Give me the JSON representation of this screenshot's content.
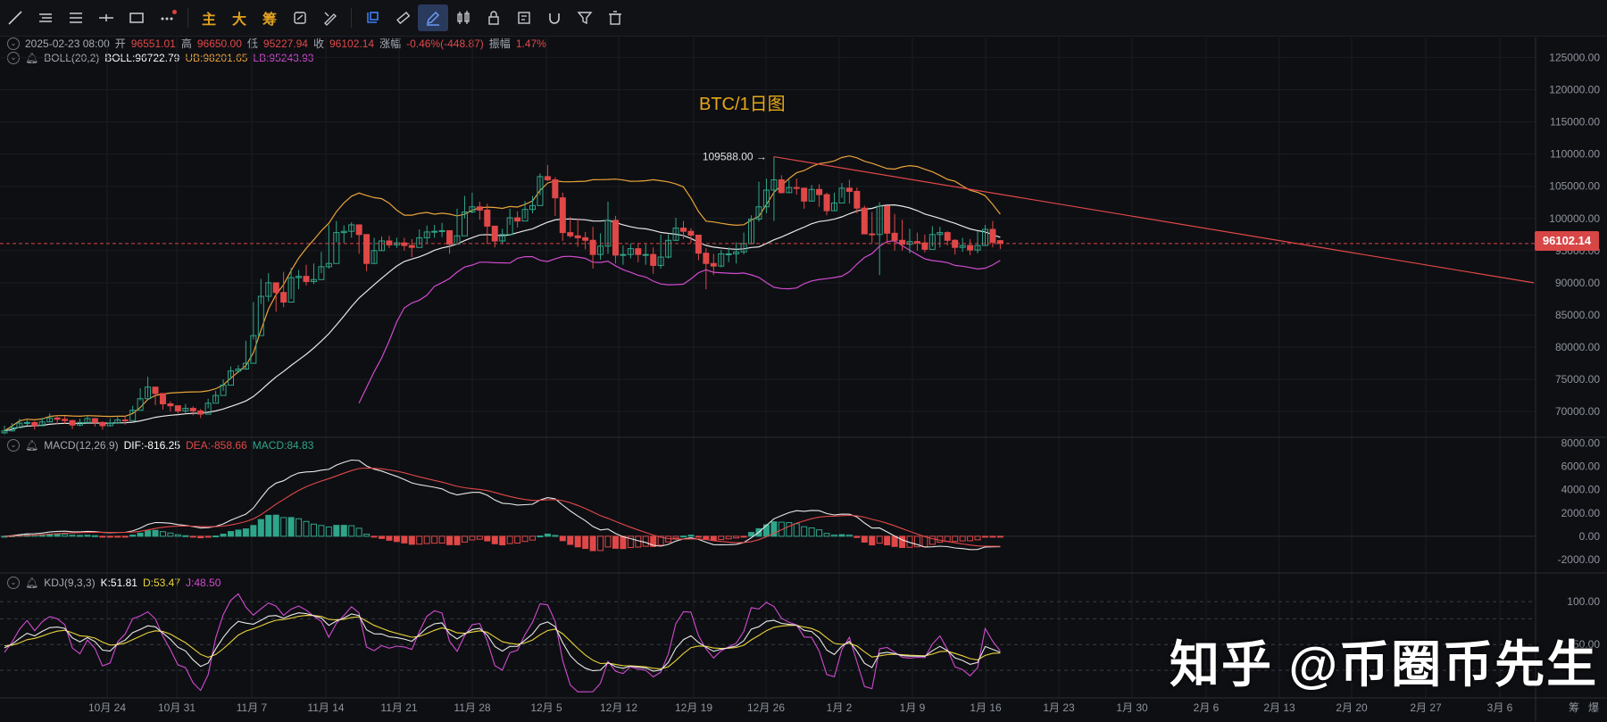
{
  "toolbar": {
    "tools": [
      "trend-line-icon",
      "horizontal-lines-icon",
      "parallel-lines-icon",
      "crosshair-line-icon",
      "rectangle-icon",
      "more-icon"
    ],
    "text_tools": [
      "主",
      "大",
      "筹"
    ],
    "tools2": [
      "cycle-icon",
      "brush-icon",
      "select-icon",
      "ruler-icon",
      "pen-icon",
      "candles-icon",
      "lock-icon",
      "note-icon",
      "magnet-icon",
      "filter-icon",
      "trash-icon"
    ]
  },
  "legend_price": {
    "date": "2025-02-23 08:00",
    "open_label": "开",
    "open": "96551.01",
    "high_label": "高",
    "high": "96650.00",
    "low_label": "低",
    "low": "95227.94",
    "close_label": "收",
    "close": "96102.14",
    "change_label": "涨幅",
    "change": "-0.46%(-448.87)",
    "amp_label": "振幅",
    "amp": "1.47%"
  },
  "legend_boll": {
    "name": "BOLL(20,2)",
    "boll": "BOLL:96722.79",
    "ub": "UB:98201.65",
    "lb": "LB:95243.93"
  },
  "legend_macd": {
    "name": "MACD(12,26,9)",
    "dif": "DIF:-816.25",
    "dea": "DEA:-858.66",
    "macd": "MACD:84.83"
  },
  "legend_kdj": {
    "name": "KDJ(9,3,3)",
    "k": "K:51.81",
    "d": "D:53.47",
    "j": "J:48.50"
  },
  "title": "BTC/1日图",
  "high_marker": "109588.00 →",
  "current_price": "96102.14",
  "watermark": "知乎 @币圈币先生",
  "price_axis": [
    "125000.00",
    "120000.00",
    "115000.00",
    "110000.00",
    "105000.00",
    "100000.00",
    "95000.00",
    "90000.00",
    "85000.00",
    "80000.00",
    "75000.00",
    "70000.00"
  ],
  "macd_axis": [
    "8000.00",
    "6000.00",
    "4000.00",
    "2000.00",
    "0.00",
    "-2000.00"
  ],
  "kdj_axis": [
    "100.00",
    "50.00"
  ],
  "date_axis": [
    "10月 24",
    "10月 31",
    "11月 7",
    "11月 14",
    "11月 21",
    "11月 28",
    "12月 5",
    "12月 12",
    "12月 19",
    "12月 26",
    "1月 2",
    "1月 9",
    "1月 16",
    "1月 23",
    "1月 30",
    "2月 6",
    "2月 13",
    "2月 20",
    "2月 27",
    "3月 6"
  ],
  "corner_labels": [
    "筹",
    "爆"
  ],
  "colors": {
    "up": "#2fa58a",
    "down": "#e04848",
    "boll_mid": "#e8e8e8",
    "boll_up": "#e8a33a",
    "boll_lo": "#d04bd0",
    "dea": "#e04848",
    "accent": "#e6a817"
  },
  "chart_data": [
    {
      "type": "candlestick",
      "title": "BTC/1日图",
      "y_range": [
        66000,
        127000
      ],
      "x_labels": [
        "10月 24",
        "10月 31",
        "11月 7",
        "11月 14",
        "11月 21",
        "11月 28",
        "12月 5",
        "12月 12",
        "12月 19",
        "12月 26",
        "1月 2",
        "1月 9",
        "1月 16",
        "1月 23",
        "1月 30",
        "2月 6",
        "2月 13",
        "2月 20"
      ],
      "closes": [
        67000,
        67500,
        68200,
        68300,
        67800,
        68400,
        69000,
        68800,
        68600,
        67900,
        68300,
        68900,
        68300,
        67800,
        68200,
        68700,
        68600,
        70200,
        72000,
        73800,
        72800,
        71200,
        70900,
        70100,
        70500,
        70100,
        69600,
        71300,
        72500,
        74100,
        76300,
        76600,
        77500,
        81800,
        87900,
        90000,
        88500,
        87000,
        90800,
        91000,
        90200,
        90500,
        92500,
        93000,
        97800,
        98000,
        99000,
        97500,
        93000,
        95000,
        96500,
        95900,
        96200,
        95800,
        95500,
        97000,
        97900,
        98000,
        98100,
        96000,
        97300,
        101000,
        101800,
        101300,
        98800,
        96500,
        97500,
        100100,
        99600,
        101400,
        102000,
        106500,
        106000,
        103200,
        97800,
        97300,
        97000,
        96600,
        94400,
        95700,
        99700,
        94300,
        94400,
        95300,
        94400,
        94400,
        92700,
        94000,
        96600,
        98500,
        98000,
        97400,
        94600,
        93000,
        92600,
        94500,
        94500,
        94800,
        96100,
        99900,
        101800,
        104400,
        106000,
        104000,
        104800,
        104700,
        102700,
        104500,
        103700,
        101200,
        102400,
        104700,
        104200,
        101600,
        97600,
        97500,
        101900,
        97700,
        96600,
        96000,
        96400,
        96200,
        95200,
        97500,
        97800,
        96600,
        95500,
        95800,
        95100,
        95800,
        98300,
        96300,
        96100
      ],
      "highs": [
        67800,
        68200,
        68900,
        68800,
        68500,
        69000,
        69700,
        69400,
        69300,
        68700,
        68900,
        69400,
        69000,
        68500,
        68900,
        69300,
        69300,
        70900,
        73600,
        75400,
        73500,
        72500,
        71600,
        70800,
        71200,
        70800,
        70400,
        72000,
        73200,
        75000,
        77000,
        77200,
        81000,
        87000,
        90600,
        91500,
        90000,
        91700,
        92300,
        92000,
        92800,
        93000,
        94800,
        99000,
        99600,
        98900,
        99400,
        98600,
        95500,
        97000,
        97200,
        97300,
        97000,
        97000,
        96800,
        98300,
        98900,
        99000,
        99300,
        98000,
        101500,
        103500,
        104000,
        102600,
        102300,
        97800,
        98400,
        101500,
        101100,
        102700,
        103500,
        107000,
        108300,
        106400,
        104000,
        100200,
        100000,
        97900,
        98700,
        97700,
        102600,
        100400,
        95800,
        96100,
        96100,
        96000,
        95500,
        97500,
        97500,
        100100,
        99600,
        98500,
        97200,
        95400,
        94500,
        95100,
        95500,
        96300,
        97800,
        100500,
        105700,
        106200,
        109588,
        106700,
        106000,
        106200,
        104500,
        105200,
        105300,
        104000,
        104000,
        105500,
        106000,
        104800,
        102000,
        101000,
        102500,
        100000,
        100700,
        99800,
        98400,
        97800,
        97500,
        98800,
        98700,
        98000,
        96800,
        97000,
        96800,
        98000,
        99000,
        99600,
        96650
      ],
      "lows": [
        66500,
        66900,
        67700,
        67800,
        67200,
        67800,
        68400,
        68000,
        68100,
        67300,
        67700,
        68300,
        67700,
        67200,
        67700,
        68100,
        68000,
        69800,
        71700,
        72200,
        71000,
        70300,
        70000,
        69700,
        69700,
        69400,
        69000,
        70500,
        71500,
        73200,
        75000,
        76000,
        76500,
        81200,
        86700,
        87100,
        85500,
        86200,
        87500,
        89000,
        89600,
        89800,
        91500,
        92200,
        96300,
        96200,
        97000,
        94500,
        91800,
        93000,
        95000,
        95400,
        95400,
        95000,
        94000,
        95900,
        96200,
        97000,
        97100,
        94500,
        96200,
        100000,
        100800,
        99800,
        96000,
        95500,
        96000,
        99000,
        98600,
        100000,
        100800,
        103600,
        105800,
        100400,
        96500,
        97000,
        95600,
        95200,
        92200,
        93600,
        94500,
        93000,
        92800,
        93800,
        93200,
        92800,
        91400,
        92200,
        93800,
        96500,
        96800,
        96200,
        93500,
        89000,
        91200,
        92400,
        93200,
        93000,
        94400,
        96000,
        99500,
        100800,
        99600,
        103900,
        104000,
        103700,
        101500,
        102700,
        101800,
        100500,
        101200,
        103200,
        102300,
        100800,
        97600,
        96200,
        91200,
        96100,
        95000,
        95000,
        94600,
        95000,
        94700,
        95600,
        95500,
        95800,
        94400,
        94800,
        94300,
        94600,
        95800,
        95500,
        95227
      ],
      "opens": [
        66700,
        67000,
        67500,
        68200,
        68300,
        67800,
        68400,
        69000,
        68800,
        68600,
        67900,
        68300,
        68900,
        68300,
        67800,
        68200,
        68700,
        68600,
        70200,
        72000,
        73800,
        72800,
        71200,
        70900,
        70100,
        70500,
        70100,
        69600,
        71300,
        72500,
        74100,
        76300,
        76600,
        77500,
        81800,
        87900,
        90000,
        88500,
        87000,
        90800,
        91000,
        90200,
        90500,
        92500,
        93000,
        97800,
        98000,
        99000,
        97500,
        93000,
        95000,
        96500,
        95900,
        96200,
        95800,
        95500,
        97000,
        97900,
        98000,
        98100,
        96000,
        97300,
        101000,
        101800,
        101300,
        98800,
        96500,
        97500,
        100100,
        99600,
        101400,
        102000,
        106500,
        106000,
        103200,
        97800,
        97300,
        97000,
        96600,
        94400,
        95700,
        99700,
        94300,
        94400,
        95300,
        94400,
        94400,
        92700,
        94000,
        96600,
        98500,
        98000,
        97400,
        94600,
        93000,
        92600,
        94500,
        94500,
        94800,
        96100,
        99900,
        101800,
        104400,
        106000,
        104000,
        104800,
        104700,
        102700,
        104500,
        103700,
        101200,
        102400,
        104700,
        104200,
        101600,
        97600,
        97500,
        101900,
        97700,
        96600,
        96000,
        96400,
        96200,
        95200,
        97500,
        97800,
        96600,
        95500,
        95800,
        95100,
        95800,
        98300,
        96551
      ],
      "series_boll": {
        "mid": "BOLL",
        "upper": "UB",
        "lower": "LB"
      },
      "trendline": {
        "from": 109588,
        "to": 90000
      },
      "high_label": 109588.0,
      "last": 96102.14
    },
    {
      "type": "bar+line",
      "name": "MACD(12,26,9)",
      "y_range": [
        -3000,
        8500
      ],
      "dif_last": -816.25,
      "dea_last": -858.66,
      "macd_last": 84.83
    },
    {
      "type": "line",
      "name": "KDJ(9,3,3)",
      "y_range": [
        0,
        110
      ],
      "k_last": 51.81,
      "d_last": 53.47,
      "j_last": 48.5
    }
  ]
}
